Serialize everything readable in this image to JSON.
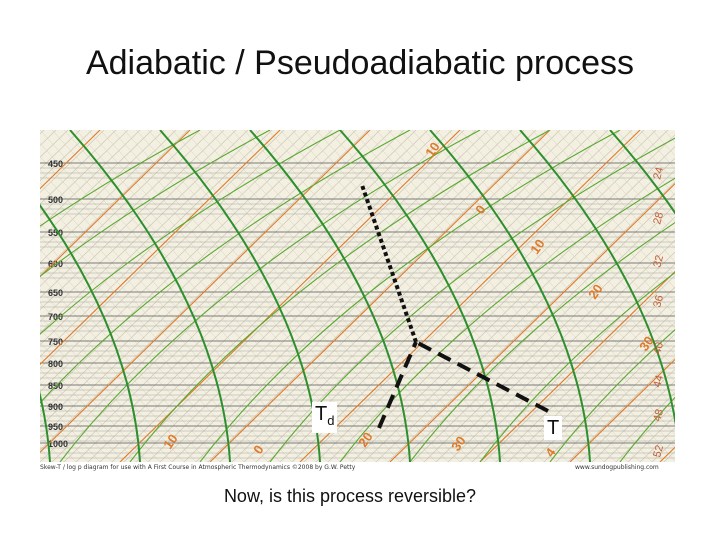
{
  "slide": {
    "title": "Adiabatic / Pseudoadiabatic process",
    "question": "Now, is this process reversible?"
  },
  "diagram": {
    "pressure_labels": [
      "450",
      "500",
      "550",
      "600",
      "650",
      "700",
      "750",
      "800",
      "850",
      "900",
      "950",
      "1000"
    ],
    "temp_labels": [
      "10",
      "0",
      "10",
      "20",
      "30",
      "10",
      "0",
      "20",
      "30",
      "4"
    ],
    "mixing_labels": [
      "24",
      "28",
      "32",
      "36",
      "40",
      "44",
      "48",
      "52"
    ],
    "parcel_labels": {
      "dewpoint_main": "T",
      "dewpoint_sub": "d",
      "temperature": "T"
    },
    "caption_left": "Skew-T / log p diagram   for use with  A First Course in Atmospheric Thermodynamics        ©2008 by G.W. Petty",
    "caption_right": "www.sundogpublishing.com",
    "colors": {
      "isotherm": "#e07a2a",
      "dry_adiabat": "#5aa832",
      "moist_adiabat": "#2d8f2d",
      "isobar": "#7a7a7a",
      "path": "#111111"
    }
  }
}
